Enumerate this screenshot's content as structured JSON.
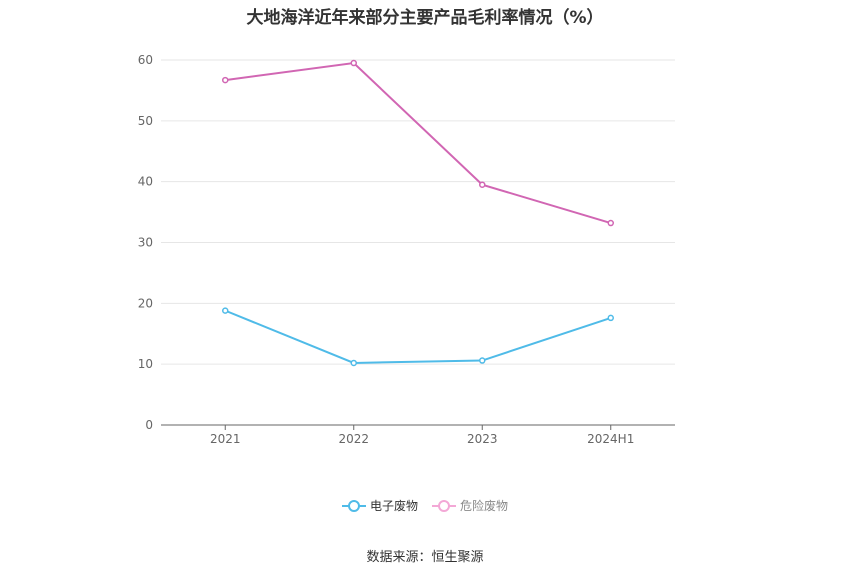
{
  "chart_data": {
    "type": "line",
    "title": "大地海洋近年来部分主要产品毛利率情况（%）",
    "categories": [
      "2021",
      "2022",
      "2023",
      "2024H1"
    ],
    "ylim": [
      0,
      60
    ],
    "yticks": [
      0,
      10,
      20,
      30,
      40,
      50,
      60
    ],
    "grid": true,
    "legend_position": "bottom",
    "series": [
      {
        "name": "电子废物",
        "color": "#4fbbe8",
        "values": [
          18.8,
          10.2,
          10.6,
          17.6
        ]
      },
      {
        "name": "危险废物",
        "color": "#d166b3",
        "legend_color": "#f3a8d6",
        "values": [
          56.7,
          59.5,
          39.5,
          33.2
        ]
      }
    ]
  },
  "source_text": "数据来源：恒生聚源"
}
